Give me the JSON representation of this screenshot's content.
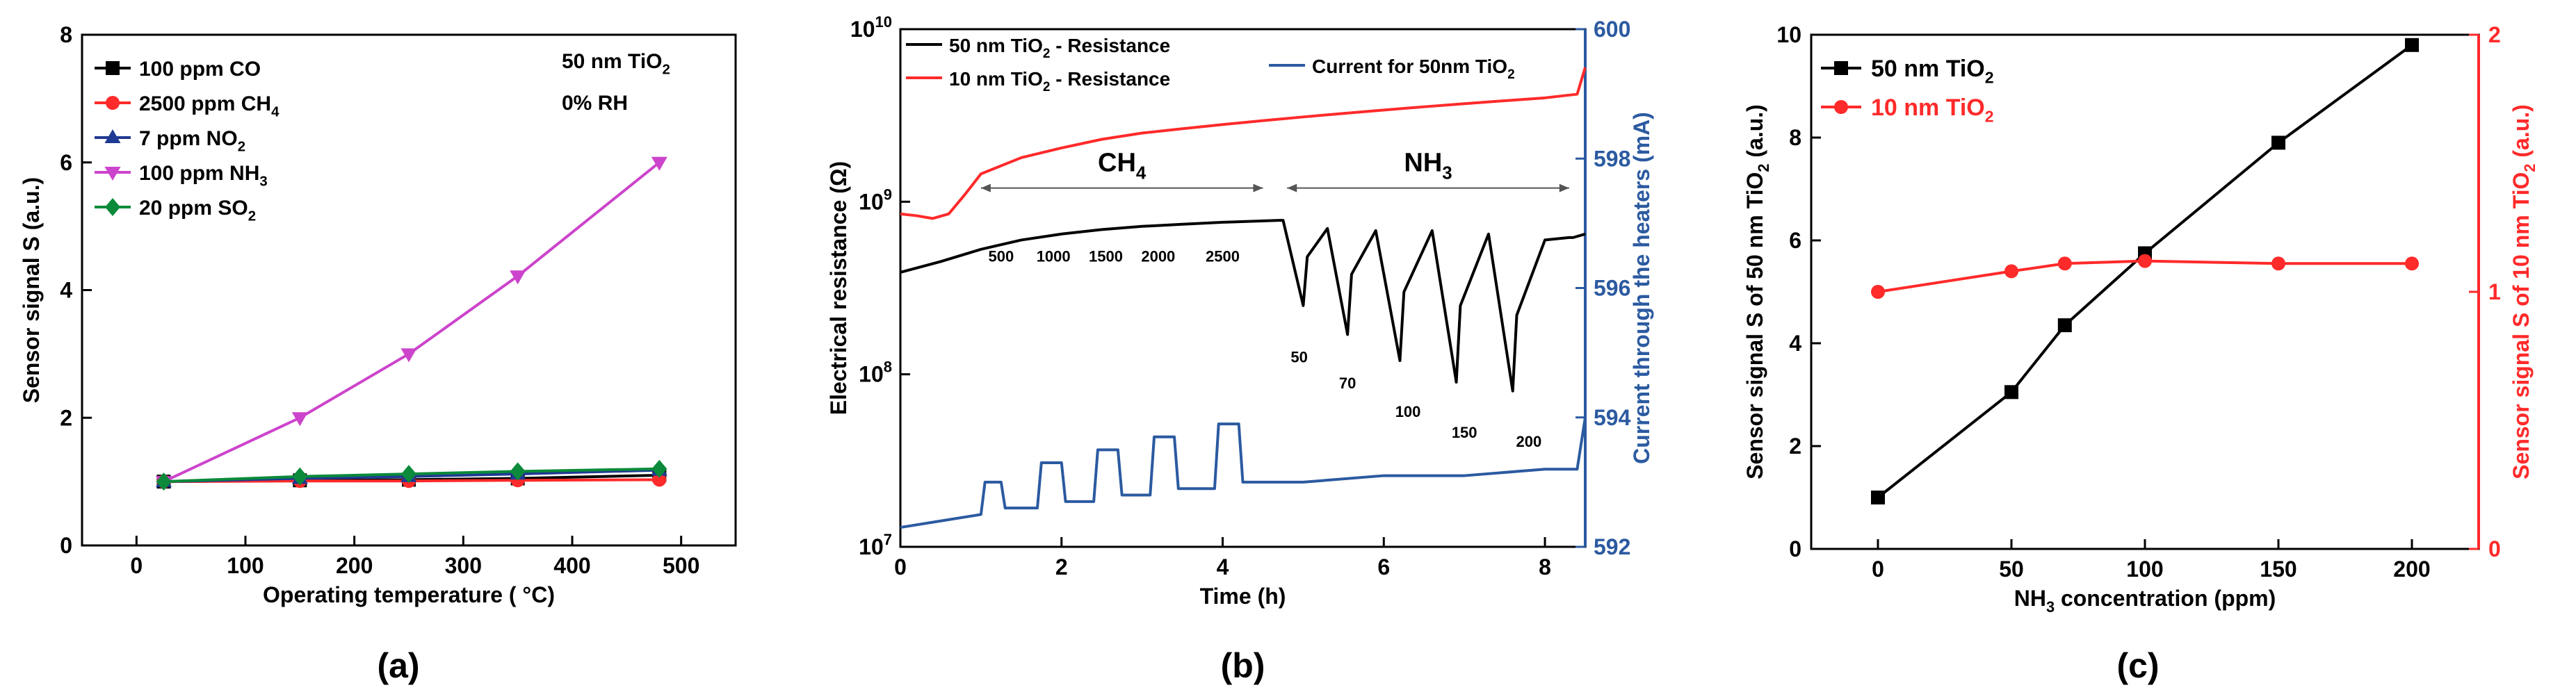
{
  "chart_data": [
    {
      "panel": "(a)",
      "type": "line",
      "xlabel": "Operating temperature ( °C)",
      "ylabel": "Sensor signal S (a.u.)",
      "xlim": [
        -50,
        550
      ],
      "ylim": [
        0,
        8
      ],
      "xticks": [
        0,
        100,
        200,
        300,
        400,
        500
      ],
      "yticks": [
        0,
        2,
        4,
        6,
        8
      ],
      "legend_position": "top-left",
      "annotations": [
        "50 nm TiO2",
        "0% RH"
      ],
      "x": [
        25,
        150,
        250,
        350,
        480
      ],
      "series": [
        {
          "name": "100 ppm CO",
          "color": "#000000",
          "marker": "square",
          "values": [
            1.0,
            1.02,
            1.03,
            1.05,
            1.1
          ]
        },
        {
          "name": "2500 ppm CH4",
          "color": "#ff2a2a",
          "marker": "circle",
          "values": [
            1.0,
            1.01,
            1.01,
            1.02,
            1.03
          ]
        },
        {
          "name": "7 ppm NO2",
          "color": "#1f3a93",
          "marker": "triangle-up",
          "values": [
            1.0,
            1.05,
            1.08,
            1.12,
            1.18
          ]
        },
        {
          "name": "100 ppm NH3",
          "color": "#cc44cc",
          "marker": "triangle-down",
          "values": [
            1.0,
            2.0,
            3.0,
            4.22,
            6.0
          ]
        },
        {
          "name": "20 ppm SO2",
          "color": "#0a8a3a",
          "marker": "diamond",
          "values": [
            1.0,
            1.08,
            1.12,
            1.16,
            1.2
          ]
        }
      ]
    },
    {
      "panel": "(b)",
      "type": "line",
      "xlabel": "Time (h)",
      "ylabel": "Electrical resistance (Ω)",
      "y2label": "Current through the heaters (mA)",
      "xlim": [
        0,
        8.5
      ],
      "ylim": [
        10000000,
        10000000000
      ],
      "yscale": "log",
      "y2lim": [
        592,
        600
      ],
      "xticks": [
        0,
        2,
        4,
        6,
        8
      ],
      "yticks": [
        {
          "value": 10000000,
          "label": "10",
          "exp": "7"
        },
        {
          "value": 100000000,
          "label": "10",
          "exp": "8"
        },
        {
          "value": 1000000000,
          "label": "10",
          "exp": "9"
        },
        {
          "value": 10000000000,
          "label": "10",
          "exp": "10"
        }
      ],
      "y2ticks": [
        592,
        594,
        596,
        598,
        600
      ],
      "legend": [
        "50 nm TiO2 - Resistance",
        "10 nm TiO2 - Resistance",
        "Current for 50nm TiO2"
      ],
      "gas_labels": [
        {
          "text": "CH4",
          "x_from": 1.0,
          "x_to": 4.5
        },
        {
          "text": "NH3",
          "x_from": 4.8,
          "x_to": 8.3
        }
      ],
      "ch4_concentrations": [
        {
          "label": "500",
          "x": 1.25
        },
        {
          "label": "1000",
          "x": 1.9
        },
        {
          "label": "1500",
          "x": 2.55
        },
        {
          "label": "2000",
          "x": 3.2
        },
        {
          "label": "2500",
          "x": 4.0
        }
      ],
      "nh3_concentrations": [
        {
          "label": "50",
          "x": 4.95
        },
        {
          "label": "70",
          "x": 5.55
        },
        {
          "label": "100",
          "x": 6.3
        },
        {
          "label": "150",
          "x": 7.0
        },
        {
          "label": "200",
          "x": 7.8
        }
      ],
      "series": [
        {
          "name": "50 nm TiO2 - Resistance",
          "color": "#000000",
          "axis": "left",
          "x": [
            0,
            0.5,
            1.0,
            1.5,
            2.0,
            2.5,
            3.0,
            3.5,
            4.0,
            4.7,
            4.75,
            5.0,
            5.05,
            5.3,
            5.55,
            5.6,
            5.9,
            6.2,
            6.25,
            6.6,
            6.9,
            6.95,
            7.3,
            7.6,
            7.65,
            8.0,
            8.3,
            8.35,
            8.5
          ],
          "values": [
            390000000,
            450000000,
            530000000,
            600000000,
            650000000,
            690000000,
            720000000,
            740000000,
            760000000,
            780000000,
            780000000,
            250000000,
            480000000,
            700000000,
            170000000,
            380000000,
            680000000,
            120000000,
            300000000,
            680000000,
            90000000,
            250000000,
            650000000,
            80000000,
            220000000,
            600000000,
            620000000,
            620000000,
            650000000
          ]
        },
        {
          "name": "10 nm TiO2 - Resistance",
          "color": "#ff2a2a",
          "axis": "left",
          "x": [
            0,
            0.2,
            0.4,
            0.6,
            0.8,
            1.0,
            1.5,
            2.0,
            2.5,
            3.0,
            3.5,
            4.0,
            4.5,
            5.0,
            5.5,
            6.0,
            6.5,
            7.0,
            7.5,
            8.0,
            8.4,
            8.5
          ],
          "values": [
            850000000,
            830000000,
            800000000,
            850000000,
            1100000000,
            1450000000,
            1800000000,
            2050000000,
            2300000000,
            2500000000,
            2650000000,
            2800000000,
            2950000000,
            3100000000,
            3250000000,
            3400000000,
            3550000000,
            3700000000,
            3850000000,
            4000000000,
            4200000000,
            6000000000
          ]
        },
        {
          "name": "Current for 50nm TiO2",
          "color": "#2b5aa0",
          "axis": "right",
          "x": [
            0,
            0.5,
            1.0,
            1.05,
            1.25,
            1.3,
            1.7,
            1.75,
            2.0,
            2.05,
            2.4,
            2.45,
            2.7,
            2.75,
            3.1,
            3.15,
            3.4,
            3.45,
            3.9,
            3.95,
            4.2,
            4.25,
            4.7,
            5.0,
            6.0,
            7.0,
            8.0,
            8.4,
            8.5
          ],
          "values": [
            592.3,
            592.4,
            592.5,
            593.0,
            593.0,
            592.6,
            592.6,
            593.3,
            593.3,
            592.7,
            592.7,
            593.5,
            593.5,
            592.8,
            592.8,
            593.7,
            593.7,
            592.9,
            592.9,
            593.9,
            593.9,
            593.0,
            593.0,
            593.0,
            593.1,
            593.1,
            593.2,
            593.2,
            594.0
          ]
        }
      ]
    },
    {
      "panel": "(c)",
      "type": "line",
      "xlabel": "NH3 concentration (ppm)",
      "ylabel": "Sensor signal S of 50 nm TiO2 (a.u.)",
      "y2label": "Sensor signal S of 10 nm TiO2 (a.u.)",
      "xlim": [
        -25,
        225
      ],
      "ylim": [
        0,
        10
      ],
      "y2lim": [
        0,
        2
      ],
      "xticks": [
        0,
        50,
        100,
        150,
        200
      ],
      "yticks": [
        0,
        2,
        4,
        6,
        8,
        10
      ],
      "y2ticks": [
        0,
        1,
        2
      ],
      "legend_position": "top-left",
      "series": [
        {
          "name": "50 nm TiO2",
          "color": "#000000",
          "axis": "left",
          "marker": "square",
          "x": [
            0,
            50,
            70,
            100,
            150,
            200
          ],
          "values": [
            1.0,
            3.05,
            4.35,
            5.75,
            7.9,
            9.8
          ]
        },
        {
          "name": "10 nm TiO2",
          "color": "#ff2a2a",
          "axis": "right",
          "marker": "circle",
          "x": [
            0,
            50,
            70,
            100,
            150,
            200
          ],
          "values": [
            1.0,
            1.08,
            1.11,
            1.12,
            1.11,
            1.11
          ]
        }
      ]
    }
  ]
}
